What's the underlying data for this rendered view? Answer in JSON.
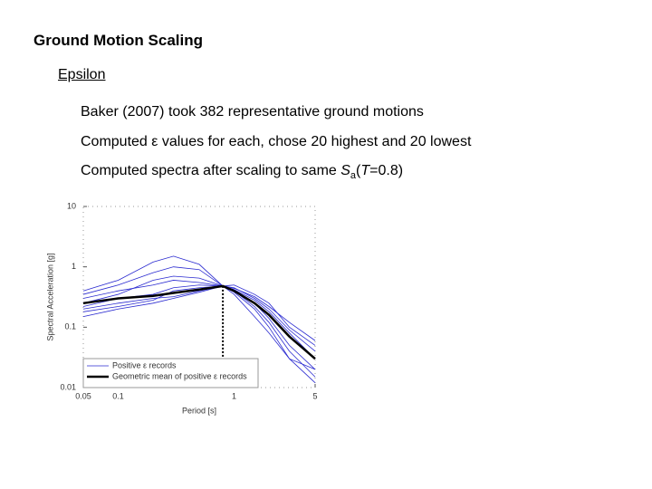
{
  "slide": {
    "title": "Ground Motion Scaling",
    "subtitle": "Epsilon",
    "bullets": [
      "Baker (2007) took 382 representative ground motions",
      "Computed ε values for each, chose 20 highest and 20 lowest",
      [
        "Computed spectra after scaling to same ",
        "S",
        "a",
        "(",
        "T",
        "=0.8)"
      ]
    ]
  },
  "chart_data": {
    "type": "line",
    "x_label": "Period [s]",
    "y_label": "Spectral Acceleration [g]",
    "log_x": true,
    "log_y": true,
    "xlim": [
      0.05,
      5
    ],
    "ylim": [
      0.01,
      10
    ],
    "xticks": [
      0.05,
      0.1,
      1,
      5
    ],
    "yticks": [
      0.01,
      0.1,
      1,
      10
    ],
    "legend": "lower left",
    "vline": 0.8,
    "x": [
      0.05,
      0.1,
      0.2,
      0.3,
      0.5,
      0.8,
      1,
      1.5,
      2,
      3,
      5
    ],
    "series": [
      {
        "name": "Positive ε records",
        "color": "#2a2ad0",
        "values": [
          0.35,
          0.5,
          0.8,
          1.0,
          0.9,
          0.48,
          0.4,
          0.22,
          0.12,
          0.04,
          0.015
        ]
      },
      {
        "color": "#2a2ad0",
        "values": [
          0.15,
          0.2,
          0.25,
          0.3,
          0.38,
          0.48,
          0.45,
          0.3,
          0.2,
          0.09,
          0.04
        ]
      },
      {
        "color": "#2a2ad0",
        "values": [
          0.3,
          0.4,
          0.5,
          0.6,
          0.55,
          0.48,
          0.42,
          0.28,
          0.18,
          0.08,
          0.03
        ]
      },
      {
        "color": "#2a2ad0",
        "values": [
          0.2,
          0.25,
          0.3,
          0.32,
          0.4,
          0.48,
          0.5,
          0.35,
          0.25,
          0.1,
          0.05
        ]
      },
      {
        "color": "#2a2ad0",
        "values": [
          0.25,
          0.35,
          0.6,
          0.7,
          0.65,
          0.48,
          0.38,
          0.2,
          0.1,
          0.03,
          0.012
        ]
      },
      {
        "color": "#2a2ad0",
        "values": [
          0.18,
          0.22,
          0.28,
          0.4,
          0.45,
          0.48,
          0.44,
          0.32,
          0.22,
          0.12,
          0.06
        ]
      },
      {
        "color": "#2a2ad0",
        "values": [
          0.4,
          0.6,
          1.2,
          1.5,
          1.1,
          0.48,
          0.35,
          0.15,
          0.08,
          0.03,
          0.02
        ]
      },
      {
        "color": "#2a2ad0",
        "values": [
          0.22,
          0.3,
          0.35,
          0.45,
          0.5,
          0.48,
          0.4,
          0.25,
          0.14,
          0.05,
          0.02
        ]
      },
      {
        "name": "Geometric mean of positive ε records",
        "color": "#000000",
        "width": 2.5,
        "values": [
          0.25,
          0.3,
          0.33,
          0.37,
          0.42,
          0.48,
          0.4,
          0.25,
          0.16,
          0.07,
          0.03
        ]
      }
    ]
  }
}
